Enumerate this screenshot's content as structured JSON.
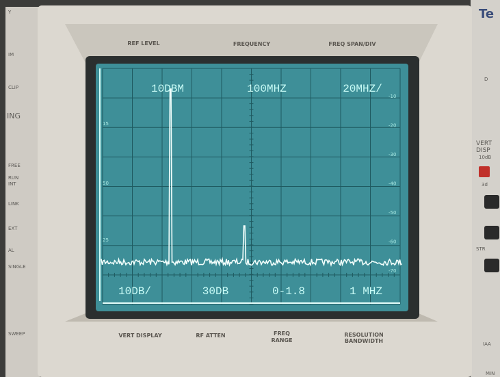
{
  "panel": {
    "top_labels": [
      "REF LEVEL",
      "FREQUENCY",
      "FREQ SPAN/DIV"
    ],
    "bottom_labels": [
      [
        "VERT DISPLAY"
      ],
      [
        "RF ATTEN"
      ],
      [
        "FREQ",
        "RANGE"
      ],
      [
        "RESOLUTION",
        "BANDWIDTH"
      ]
    ],
    "left_side": [
      "Y",
      "IM",
      "CLIP",
      "ING",
      "FREE",
      "RUN",
      "INT",
      "LINK",
      "EXT",
      "AL",
      "SINGLE",
      "SWEEP"
    ],
    "right_side": [
      "Te",
      "D",
      "VERT",
      "DISP",
      "10dB",
      "3d",
      "STR",
      "IAA",
      "MIN"
    ]
  },
  "screen": {
    "top_readout": [
      "10DBM",
      "100MHZ",
      "20MHZ/"
    ],
    "bottom_readout": [
      "10DB/",
      "30DB",
      "0-1.8",
      "1 MHZ"
    ],
    "right_scale": [
      "-10",
      "-20",
      "-30",
      "-40",
      "-50",
      "-60",
      "-70"
    ],
    "left_scale": [
      "15",
      "50",
      "25"
    ]
  }
}
